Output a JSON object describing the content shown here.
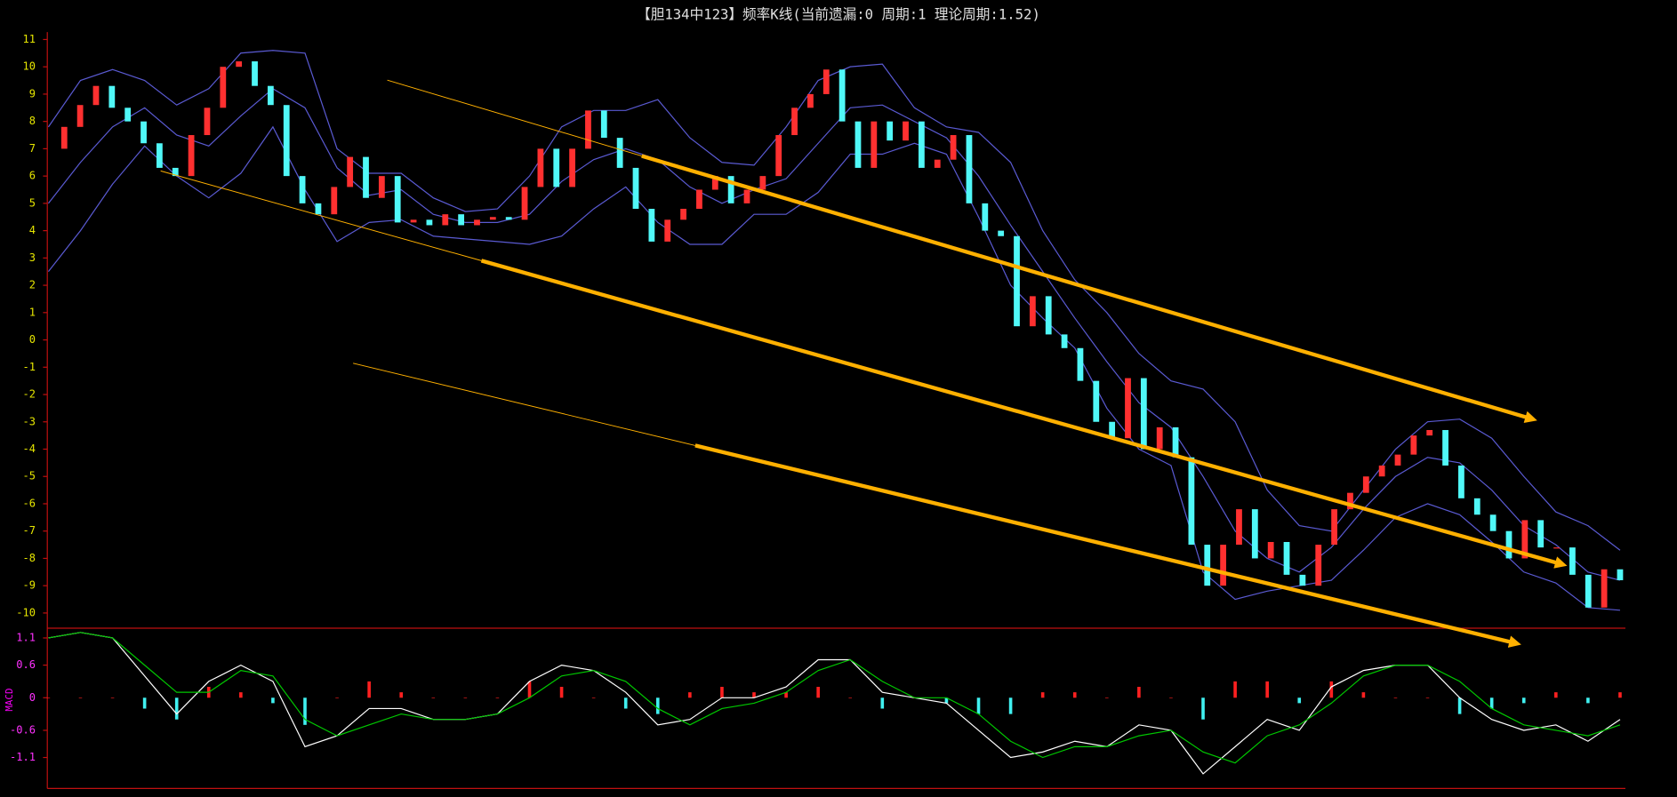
{
  "chart_data": [
    {
      "type": "candlestick",
      "title": "【胆134中123】频率K线(当前遗漏:0 周期:1 理论周期:1.52)",
      "ylim": [
        -10.4,
        11.3
      ],
      "yticks": [
        11,
        10,
        9,
        8,
        7,
        6,
        5,
        4,
        3,
        2,
        1,
        0,
        -1,
        -2,
        -3,
        -4,
        -5,
        -6,
        -7,
        -8,
        -9,
        -10
      ],
      "up_color": "#ff3030",
      "down_color": "#50f8f8",
      "values": [
        7,
        7.8,
        8.6,
        9.3,
        8.5,
        8,
        7.2,
        6.3,
        6,
        7.5,
        8.5,
        10,
        10.2,
        9.3,
        8.6,
        6,
        5,
        4.6,
        5.6,
        6.7,
        5.2,
        6,
        4.3,
        4.4,
        4.2,
        4.6,
        4.2,
        4.4,
        4.5,
        4.4,
        5.6,
        7,
        5.6,
        7,
        8.4,
        7.4,
        6.3,
        4.8,
        3.6,
        4.4,
        4.8,
        5.5,
        6,
        5,
        5.5,
        6,
        7.5,
        8.5,
        9,
        9.9,
        8,
        6.3,
        8,
        7.3,
        8,
        6.3,
        6.6,
        7.5,
        5,
        4,
        3.8,
        0.5,
        1.6,
        0.2,
        -0.3,
        -1.5,
        -3,
        -3.6,
        -1.4,
        -4,
        -3.2,
        -4.3,
        -7.5,
        -9,
        -7.5,
        -6.2,
        -8,
        -7.4,
        -8.6,
        -9,
        -7.5,
        -6.2,
        -5.6,
        -5,
        -4.6,
        -4.2,
        -3.5,
        -3.3,
        -4.6,
        -5.8,
        -6.4,
        -7,
        -8,
        -6.6,
        -7.6,
        -7.6,
        -8.6,
        -9.8,
        -8.4,
        -8.8
      ],
      "bands": {
        "color": "#5a5ad2",
        "upper": [
          7.8,
          9.5,
          9.9,
          9.5,
          8.6,
          9.2,
          10.5,
          10.6,
          10.5,
          7,
          6.1,
          6.1,
          5.2,
          4.7,
          4.8,
          6,
          7.8,
          8.4,
          8.4,
          8.8,
          7.4,
          6.5,
          6.4,
          7.8,
          9.5,
          10,
          10.1,
          8.5,
          7.8,
          7.6,
          6.5,
          4,
          2.2,
          1,
          -0.5,
          -1.5,
          -1.8,
          -3,
          -5.5,
          -6.8,
          -7,
          -5.5,
          -4,
          -3,
          -2.9,
          -3.6,
          -5,
          -6.3,
          -6.8,
          -7.7
        ],
        "mid": [
          5,
          6.5,
          7.8,
          8.5,
          7.5,
          7.1,
          8.2,
          9.2,
          8.5,
          6.3,
          5.3,
          5.5,
          4.6,
          4.3,
          4.3,
          4.6,
          5.8,
          6.6,
          7,
          6.6,
          5.6,
          5,
          5.5,
          5.9,
          7.2,
          8.5,
          8.6,
          8,
          7.4,
          6,
          4.2,
          2.5,
          0.8,
          -0.8,
          -2.3,
          -3.2,
          -5,
          -7,
          -8,
          -8.5,
          -7.6,
          -6.2,
          -5,
          -4.3,
          -4.5,
          -5.5,
          -6.8,
          -7.5,
          -8.5,
          -8.8
        ],
        "lower": [
          2.5,
          4,
          5.7,
          7.1,
          6,
          5.2,
          6.1,
          7.8,
          5.5,
          3.6,
          4.3,
          4.4,
          3.8,
          3.7,
          3.6,
          3.5,
          3.8,
          4.8,
          5.6,
          4.3,
          3.5,
          3.5,
          4.6,
          4.6,
          5.4,
          6.8,
          6.8,
          7.2,
          6.8,
          4.5,
          2,
          0.8,
          -0.3,
          -2.5,
          -4,
          -4.6,
          -8.5,
          -9.5,
          -9.2,
          -9,
          -8.8,
          -7.7,
          -6.5,
          -6,
          -6.4,
          -7.4,
          -8.5,
          -8.9,
          -9.8,
          -9.9
        ]
      }
    },
    {
      "type": "macd",
      "label": "MACD",
      "ylim": [
        -1.65,
        1.24
      ],
      "yticks": [
        1.1,
        0.6,
        0,
        -0.6,
        -1.1
      ],
      "dif": {
        "color": "#ffffff",
        "values": [
          1.1,
          1.2,
          1.1,
          0.4,
          -0.3,
          0.3,
          0.6,
          0.3,
          -0.9,
          -0.7,
          -0.2,
          -0.2,
          -0.4,
          -0.4,
          -0.3,
          0.3,
          0.6,
          0.5,
          0.1,
          -0.5,
          -0.4,
          0,
          0,
          0.2,
          0.7,
          0.7,
          0.1,
          0,
          -0.1,
          -0.6,
          -1.1,
          -1,
          -0.8,
          -0.9,
          -0.5,
          -0.6,
          -1.4,
          -0.9,
          -0.4,
          -0.6,
          0.2,
          0.5,
          0.6,
          0.6,
          0,
          -0.4,
          -0.6,
          -0.5,
          -0.8,
          -0.4
        ]
      },
      "dea": {
        "color": "#00c800",
        "values": [
          1.1,
          1.2,
          1.1,
          0.6,
          0.1,
          0.1,
          0.5,
          0.4,
          -0.4,
          -0.7,
          -0.5,
          -0.3,
          -0.4,
          -0.4,
          -0.3,
          0,
          0.4,
          0.5,
          0.3,
          -0.2,
          -0.5,
          -0.2,
          -0.1,
          0.1,
          0.5,
          0.7,
          0.3,
          0,
          0,
          -0.3,
          -0.8,
          -1.1,
          -0.9,
          -0.9,
          -0.7,
          -0.6,
          -1,
          -1.2,
          -0.7,
          -0.5,
          -0.1,
          0.4,
          0.6,
          0.6,
          0.3,
          -0.2,
          -0.5,
          -0.6,
          -0.7,
          -0.5
        ]
      },
      "hist": {
        "up_color": "#ff2020",
        "down_color": "#40f0f0",
        "values": [
          0,
          0,
          0,
          -0.2,
          -0.4,
          0.2,
          0.1,
          -0.1,
          -0.5,
          0,
          0.3,
          0.1,
          0,
          0,
          0,
          0.3,
          0.2,
          0,
          -0.2,
          -0.3,
          0.1,
          0.2,
          0.1,
          0.1,
          0.2,
          0,
          -0.2,
          0,
          -0.1,
          -0.3,
          -0.3,
          0.1,
          0.1,
          0,
          0.2,
          0,
          -0.4,
          0.3,
          0.3,
          -0.1,
          0.3,
          0.1,
          0,
          0,
          -0.3,
          -0.2,
          -0.1,
          0.1,
          -0.1,
          0.1
        ]
      }
    }
  ]
}
